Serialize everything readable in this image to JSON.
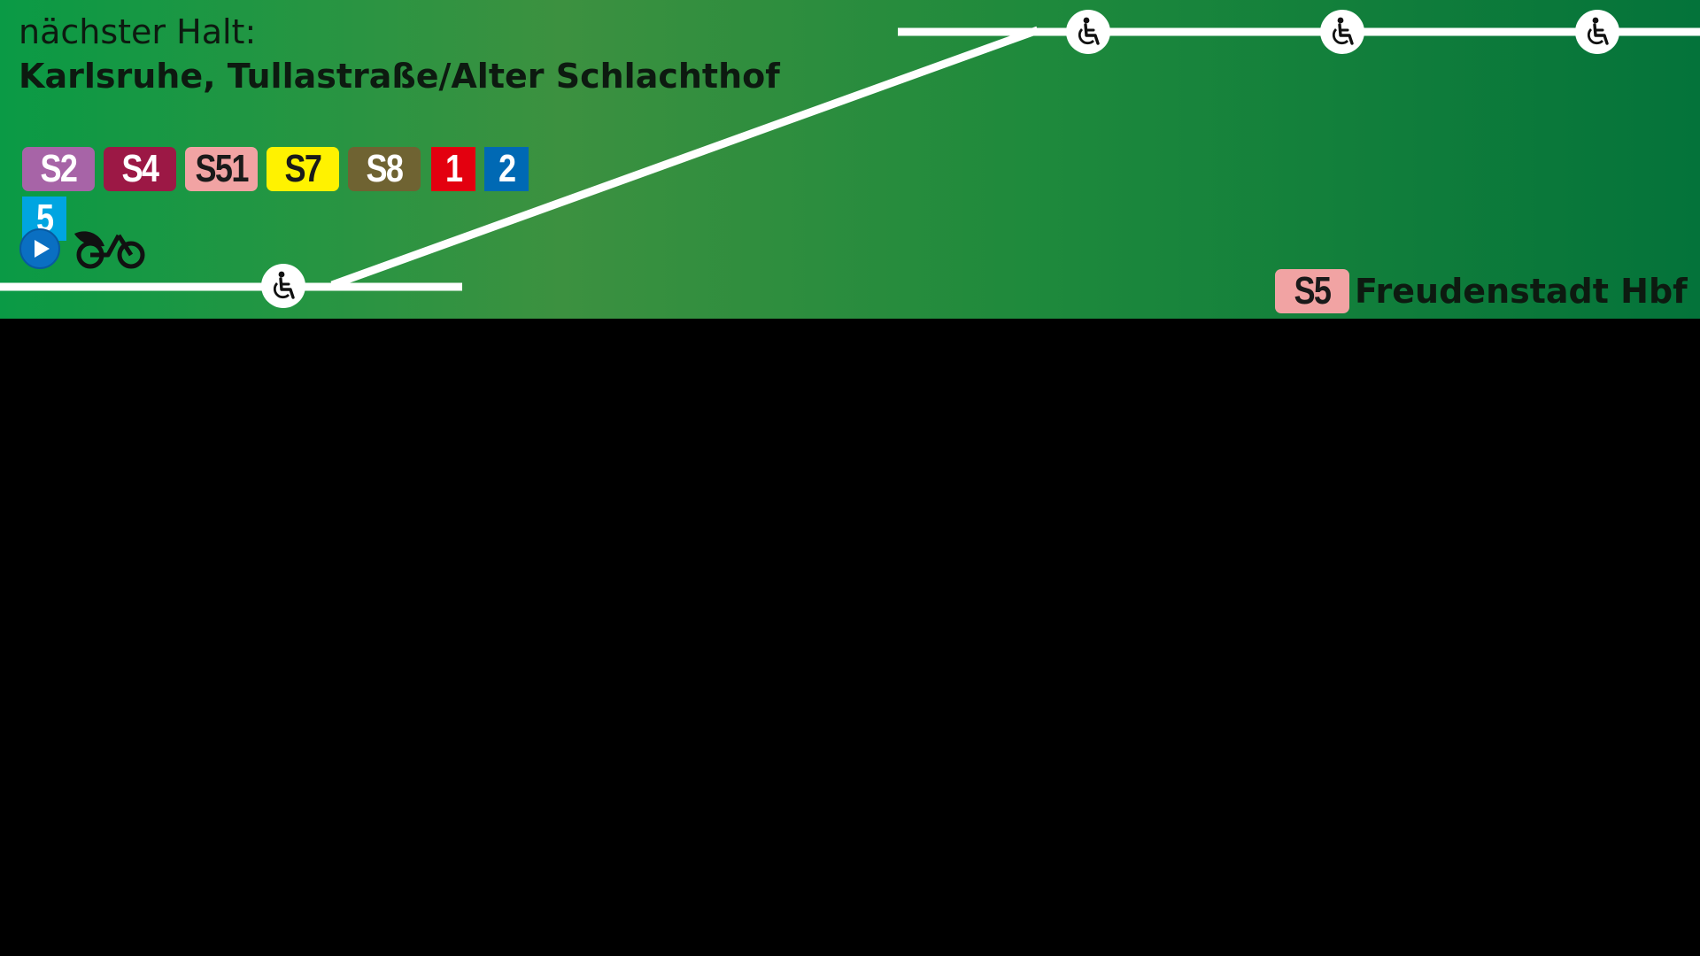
{
  "next_stop": {
    "label": "nächster Halt:",
    "name": "Karlsruhe, Tullastraße/Alter Schlachthof"
  },
  "connections": [
    {
      "line": "S2",
      "bg": "#a764a7",
      "fg": "#ffffff"
    },
    {
      "line": "S4",
      "bg": "#9c1845",
      "fg": "#ffffff"
    },
    {
      "line": "S51",
      "bg": "#f1a3a3",
      "fg": "#1a1a1a"
    },
    {
      "line": "S7",
      "bg": "#fff200",
      "fg": "#1a1a1a"
    },
    {
      "line": "S8",
      "bg": "#6f6332",
      "fg": "#ffffff"
    },
    {
      "line": "1",
      "bg": "#e3000f",
      "fg": "#ffffff"
    },
    {
      "line": "2",
      "bg": "#0069b4",
      "fg": "#ffffff"
    },
    {
      "line": "5",
      "bg": "#00a5e1",
      "fg": "#ffffff"
    }
  ],
  "service_icons": [
    "play-button-icon",
    "bike-sharing-icon"
  ],
  "route_stop_icons": [
    "wheelchair-icon",
    "wheelchair-icon",
    "wheelchair-icon",
    "wheelchair-icon"
  ],
  "destination": {
    "line": "S5",
    "line_color": "#f1a3a3",
    "name": "Freudenstadt Hbf"
  },
  "colors": {
    "banner_start": "#0a9a45",
    "banner_end": "#04733a",
    "route_line": "#ffffff",
    "text": "#0d1a10"
  }
}
